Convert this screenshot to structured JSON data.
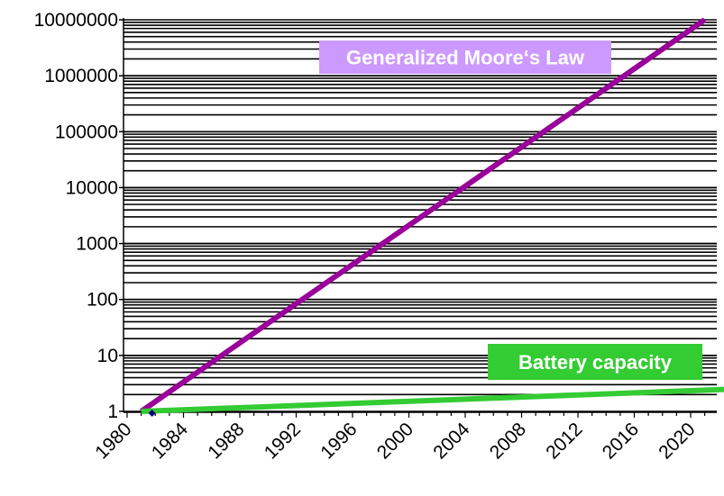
{
  "chart_data": {
    "type": "line",
    "title": "",
    "xlabel": "",
    "ylabel": "",
    "yscale": "log",
    "ylim": [
      1,
      10000000
    ],
    "xlim": [
      1980,
      2023
    ],
    "grid": true,
    "x_ticks": [
      "1980",
      "1984",
      "1988",
      "1992",
      "1996",
      "2000",
      "2004",
      "2008",
      "2012",
      "2016",
      "2020"
    ],
    "y_ticks": [
      "1",
      "10",
      "100",
      "1000",
      "10000",
      "100000",
      "1000000",
      "10000000"
    ],
    "series": [
      {
        "name": "Generalized Moore's Law",
        "color": "#990099",
        "x": [
          1981,
          2021
        ],
        "y": [
          1,
          10000000
        ]
      },
      {
        "name": "Battery capacity",
        "color": "#33cc33",
        "x": [
          1981,
          2023
        ],
        "y": [
          1,
          2.5
        ]
      }
    ],
    "annotations": [
      {
        "text": "Generalized Moore‘s Law",
        "color": "#cc99ff",
        "series": 0
      },
      {
        "text": "Battery capacity",
        "color": "#33cc33",
        "series": 1
      }
    ],
    "marker": {
      "x": 1981,
      "y": 1,
      "shape": "diamond",
      "color": "#000080"
    }
  }
}
